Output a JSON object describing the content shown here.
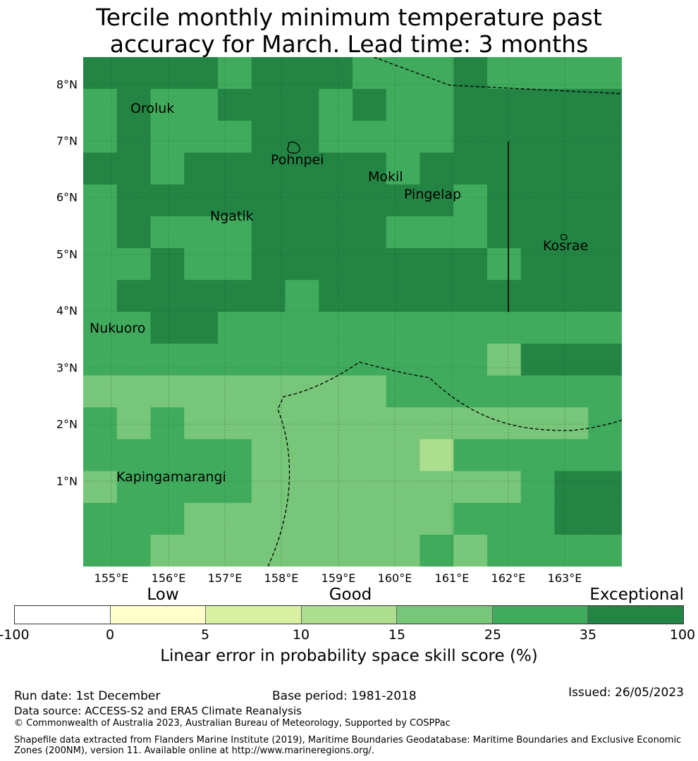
{
  "title_line1": "Tercile monthly minimum temperature past",
  "title_line2": "accuracy for March. Lead time: 3 months",
  "y_labels": [
    "8°N",
    "7°N",
    "6°N",
    "5°N",
    "4°N",
    "3°N",
    "2°N",
    "1°N"
  ],
  "x_labels": [
    "155°E",
    "156°E",
    "157°E",
    "158°E",
    "159°E",
    "160°E",
    "161°E",
    "162°E",
    "163°E"
  ],
  "places": [
    "Oroluk",
    "Pohnpei",
    "Mokil",
    "Pingelap",
    "Ngatik",
    "Kosrae",
    "Nukuoro",
    "Kapingamarangi"
  ],
  "colorbar": {
    "categories": [
      "Low",
      "Good",
      "Exceptional"
    ],
    "ticks": [
      "-100",
      "0",
      "5",
      "10",
      "15",
      "25",
      "35",
      "100"
    ],
    "colors": [
      "#ffffff",
      "#ffffcc",
      "#d9f0a3",
      "#addd8e",
      "#78c679",
      "#41ab5d",
      "#238443"
    ],
    "title": "Linear error in probability space skill score (%)"
  },
  "grid_colors": {
    "1": "#addd8e",
    "2": "#78c679",
    "3": "#41ab5d",
    "4": "#238443"
  },
  "grid_cells": [
    [
      4,
      4,
      4,
      4,
      3,
      4,
      4,
      4,
      3,
      3,
      3,
      4,
      3,
      3,
      3,
      3
    ],
    [
      3,
      4,
      3,
      3,
      4,
      4,
      4,
      3,
      4,
      3,
      3,
      4,
      4,
      4,
      4,
      4
    ],
    [
      3,
      4,
      3,
      3,
      3,
      4,
      4,
      3,
      3,
      3,
      3,
      4,
      4,
      4,
      4,
      4
    ],
    [
      4,
      4,
      3,
      4,
      4,
      4,
      4,
      4,
      4,
      3,
      4,
      4,
      4,
      4,
      4,
      4
    ],
    [
      3,
      4,
      4,
      4,
      4,
      4,
      4,
      4,
      4,
      4,
      4,
      3,
      4,
      4,
      4,
      4
    ],
    [
      3,
      4,
      3,
      3,
      3,
      4,
      4,
      4,
      4,
      3,
      3,
      3,
      4,
      4,
      4,
      4
    ],
    [
      3,
      3,
      4,
      3,
      3,
      4,
      4,
      4,
      4,
      4,
      4,
      4,
      3,
      4,
      4,
      4
    ],
    [
      3,
      4,
      4,
      4,
      4,
      4,
      3,
      4,
      4,
      4,
      4,
      4,
      4,
      4,
      4,
      4
    ],
    [
      3,
      3,
      4,
      4,
      3,
      3,
      3,
      3,
      3,
      3,
      3,
      3,
      3,
      3,
      3,
      3
    ],
    [
      3,
      3,
      3,
      3,
      3,
      3,
      3,
      3,
      3,
      3,
      3,
      3,
      2,
      4,
      4,
      4
    ],
    [
      2,
      2,
      2,
      2,
      2,
      2,
      2,
      2,
      2,
      3,
      3,
      3,
      3,
      3,
      3,
      3
    ],
    [
      3,
      2,
      3,
      2,
      2,
      2,
      2,
      2,
      2,
      2,
      2,
      2,
      2,
      2,
      2,
      3
    ],
    [
      3,
      3,
      3,
      3,
      3,
      2,
      2,
      2,
      2,
      2,
      1,
      3,
      3,
      3,
      3,
      3
    ],
    [
      2,
      3,
      3,
      3,
      3,
      2,
      2,
      2,
      2,
      2,
      2,
      2,
      2,
      3,
      4,
      4
    ],
    [
      3,
      3,
      3,
      2,
      2,
      2,
      2,
      2,
      2,
      2,
      2,
      3,
      3,
      3,
      4,
      4
    ],
    [
      3,
      3,
      2,
      2,
      2,
      2,
      2,
      2,
      2,
      2,
      3,
      2,
      3,
      3,
      3,
      3
    ]
  ],
  "run_date": "Run date: 1st December",
  "base_period": "Base period: 1981-2018",
  "issued": "Issued: 26/05/2023",
  "data_source": "Data source: ACCESS-S2 and ERA5 Climate Reanalysis",
  "copyright": "© Commonwealth of Australia 2023, Australian Bureau of Meteorology, Supported by COSPPac",
  "shapefile_note": "Shapefile data extracted from Flanders Marine Institute (2019), Maritime Boundaries Geodatabase: Maritime Boundaries and Exclusive Economic Zones (200NM), version 11. Available online at http://www.marineregions.org/."
}
